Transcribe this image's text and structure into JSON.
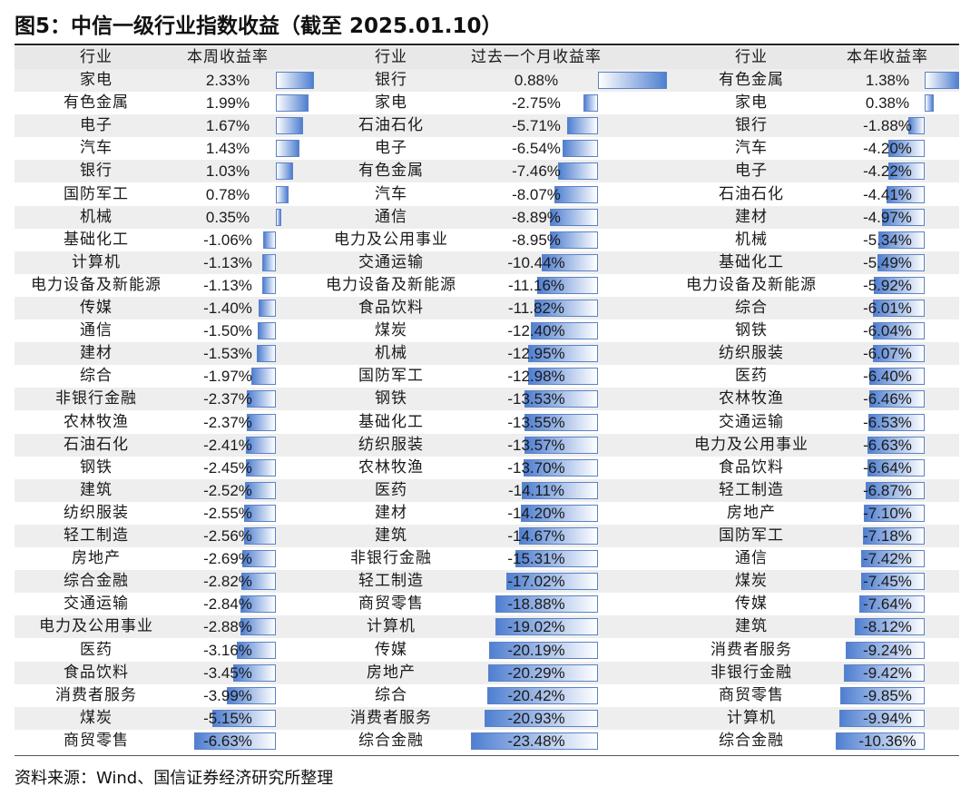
{
  "title": "图5：中信一级行业指数收益（截至 2025.01.10）",
  "source": "资料来源：Wind、国信证券经济研究所整理",
  "colors": {
    "bar": "#4f7fd1",
    "header_bg": "#e8e8e8",
    "stripe_bg": "#eeeeee"
  },
  "chart_data": [
    {
      "type": "table",
      "headers": [
        "行业",
        "本周收益率"
      ],
      "rows": [
        [
          "家电",
          "2.33%"
        ],
        [
          "有色金属",
          "1.99%"
        ],
        [
          "电子",
          "1.67%"
        ],
        [
          "汽车",
          "1.43%"
        ],
        [
          "银行",
          "1.03%"
        ],
        [
          "国防军工",
          "0.78%"
        ],
        [
          "机械",
          "0.35%"
        ],
        [
          "基础化工",
          "-1.06%"
        ],
        [
          "计算机",
          "-1.13%"
        ],
        [
          "电力设备及新能源",
          "-1.13%"
        ],
        [
          "传媒",
          "-1.40%"
        ],
        [
          "通信",
          "-1.50%"
        ],
        [
          "建材",
          "-1.53%"
        ],
        [
          "综合",
          "-1.97%"
        ],
        [
          "非银行金融",
          "-2.37%"
        ],
        [
          "农林牧渔",
          "-2.37%"
        ],
        [
          "石油石化",
          "-2.41%"
        ],
        [
          "钢铁",
          "-2.45%"
        ],
        [
          "建筑",
          "-2.52%"
        ],
        [
          "纺织服装",
          "-2.55%"
        ],
        [
          "轻工制造",
          "-2.56%"
        ],
        [
          "房地产",
          "-2.69%"
        ],
        [
          "综合金融",
          "-2.82%"
        ],
        [
          "交通运输",
          "-2.84%"
        ],
        [
          "电力及公用事业",
          "-2.88%"
        ],
        [
          "医药",
          "-3.16%"
        ],
        [
          "食品饮料",
          "-3.45%"
        ],
        [
          "消费者服务",
          "-3.99%"
        ],
        [
          "煤炭",
          "-5.15%"
        ],
        [
          "商贸零售",
          "-6.63%"
        ]
      ],
      "values": [
        2.33,
        1.99,
        1.67,
        1.43,
        1.03,
        0.78,
        0.35,
        -1.06,
        -1.13,
        -1.13,
        -1.4,
        -1.5,
        -1.53,
        -1.97,
        -2.37,
        -2.37,
        -2.41,
        -2.45,
        -2.52,
        -2.55,
        -2.56,
        -2.69,
        -2.82,
        -2.84,
        -2.88,
        -3.16,
        -3.45,
        -3.99,
        -5.15,
        -6.63
      ]
    },
    {
      "type": "table",
      "headers": [
        "行业",
        "过去一个月收益率"
      ],
      "rows": [
        [
          "银行",
          "0.88%"
        ],
        [
          "家电",
          "-2.75%"
        ],
        [
          "石油石化",
          "-5.71%"
        ],
        [
          "电子",
          "-6.54%"
        ],
        [
          "有色金属",
          "-7.46%"
        ],
        [
          "汽车",
          "-8.07%"
        ],
        [
          "通信",
          "-8.89%"
        ],
        [
          "电力及公用事业",
          "-8.95%"
        ],
        [
          "交通运输",
          "-10.44%"
        ],
        [
          "电力设备及新能源",
          "-11.16%"
        ],
        [
          "食品饮料",
          "-11.82%"
        ],
        [
          "煤炭",
          "-12.40%"
        ],
        [
          "机械",
          "-12.95%"
        ],
        [
          "国防军工",
          "-12.98%"
        ],
        [
          "钢铁",
          "-13.53%"
        ],
        [
          "基础化工",
          "-13.55%"
        ],
        [
          "纺织服装",
          "-13.57%"
        ],
        [
          "农林牧渔",
          "-13.70%"
        ],
        [
          "医药",
          "-14.11%"
        ],
        [
          "建材",
          "-14.20%"
        ],
        [
          "建筑",
          "-14.67%"
        ],
        [
          "非银行金融",
          "-15.31%"
        ],
        [
          "轻工制造",
          "-17.02%"
        ],
        [
          "商贸零售",
          "-18.88%"
        ],
        [
          "计算机",
          "-19.02%"
        ],
        [
          "传媒",
          "-20.19%"
        ],
        [
          "房地产",
          "-20.29%"
        ],
        [
          "综合",
          "-20.42%"
        ],
        [
          "消费者服务",
          "-20.93%"
        ],
        [
          "综合金融",
          "-23.48%"
        ]
      ],
      "values": [
        0.88,
        -2.75,
        -5.71,
        -6.54,
        -7.46,
        -8.07,
        -8.89,
        -8.95,
        -10.44,
        -11.16,
        -11.82,
        -12.4,
        -12.95,
        -12.98,
        -13.53,
        -13.55,
        -13.57,
        -13.7,
        -14.11,
        -14.2,
        -14.67,
        -15.31,
        -17.02,
        -18.88,
        -19.02,
        -20.19,
        -20.29,
        -20.42,
        -20.93,
        -23.48
      ]
    },
    {
      "type": "table",
      "headers": [
        "行业",
        "本年收益率"
      ],
      "rows": [
        [
          "有色金属",
          "1.38%"
        ],
        [
          "家电",
          "0.38%"
        ],
        [
          "银行",
          "-1.88%"
        ],
        [
          "汽车",
          "-4.20%"
        ],
        [
          "电子",
          "-4.22%"
        ],
        [
          "石油石化",
          "-4.41%"
        ],
        [
          "建材",
          "-4.97%"
        ],
        [
          "机械",
          "-5.34%"
        ],
        [
          "基础化工",
          "-5.49%"
        ],
        [
          "电力设备及新能源",
          "-5.92%"
        ],
        [
          "综合",
          "-6.01%"
        ],
        [
          "钢铁",
          "-6.04%"
        ],
        [
          "纺织服装",
          "-6.07%"
        ],
        [
          "医药",
          "-6.40%"
        ],
        [
          "农林牧渔",
          "-6.46%"
        ],
        [
          "交通运输",
          "-6.53%"
        ],
        [
          "电力及公用事业",
          "-6.63%"
        ],
        [
          "食品饮料",
          "-6.64%"
        ],
        [
          "轻工制造",
          "-6.87%"
        ],
        [
          "房地产",
          "-7.10%"
        ],
        [
          "国防军工",
          "-7.18%"
        ],
        [
          "通信",
          "-7.42%"
        ],
        [
          "煤炭",
          "-7.45%"
        ],
        [
          "传媒",
          "-7.64%"
        ],
        [
          "建筑",
          "-8.12%"
        ],
        [
          "消费者服务",
          "-9.24%"
        ],
        [
          "非银行金融",
          "-9.42%"
        ],
        [
          "商贸零售",
          "-9.85%"
        ],
        [
          "计算机",
          "-9.94%"
        ],
        [
          "综合金融",
          "-10.36%"
        ]
      ],
      "values": [
        1.38,
        0.38,
        -1.88,
        -4.2,
        -4.22,
        -4.41,
        -4.97,
        -5.34,
        -5.49,
        -5.92,
        -6.01,
        -6.04,
        -6.07,
        -6.4,
        -6.46,
        -6.53,
        -6.63,
        -6.64,
        -6.87,
        -7.1,
        -7.18,
        -7.42,
        -7.45,
        -7.64,
        -8.12,
        -9.24,
        -9.42,
        -9.85,
        -9.94,
        -10.36
      ]
    }
  ]
}
